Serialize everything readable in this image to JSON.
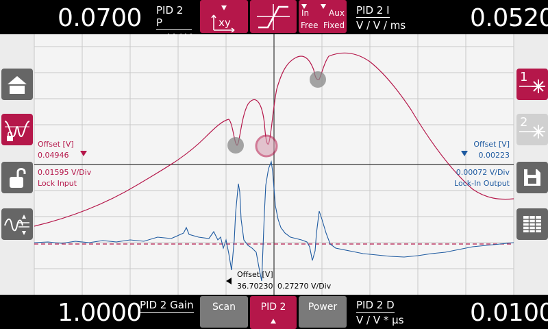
{
  "top": {
    "left_value": "0.0700",
    "left_param": "PID 2 P",
    "left_unit": "V / V",
    "right_value": "0.0520",
    "right_param": "PID 2 I",
    "right_unit": "V / V / ms",
    "mode_in": "In",
    "mode_free": "Free",
    "mode_aux": "Aux",
    "mode_fixed": "Fixed",
    "xy_label": "xy"
  },
  "bottom": {
    "left_value": "1.0000",
    "left_param": "PID 2 Gain",
    "right_value": "0.0100",
    "right_param": "PID 2 D",
    "right_unit": "V / V * µs",
    "tabs": [
      {
        "label": "Scan"
      },
      {
        "label": "PID 2"
      },
      {
        "label": "Power"
      }
    ]
  },
  "graph": {
    "left_offset_label": "Offset [V]",
    "left_offset_value": "0.04946",
    "left_scale": "0.01595 V/Div",
    "left_channel": "Lock Input",
    "right_offset_label": "Offset [V]",
    "right_offset_value": "0.00223",
    "right_scale": "0.00072 V/Div",
    "right_channel": "Lock-In Output",
    "bottom_offset_label": "Offset [V]",
    "bottom_offset_value": "36.70230",
    "bottom_scale": "0.27270 V/Div"
  },
  "side_buttons": {
    "laser1": "1",
    "laser2": "2"
  },
  "colors": {
    "accent": "#b5174a",
    "blue_trace": "#1e5aa0",
    "red_trace": "#b5174a"
  }
}
